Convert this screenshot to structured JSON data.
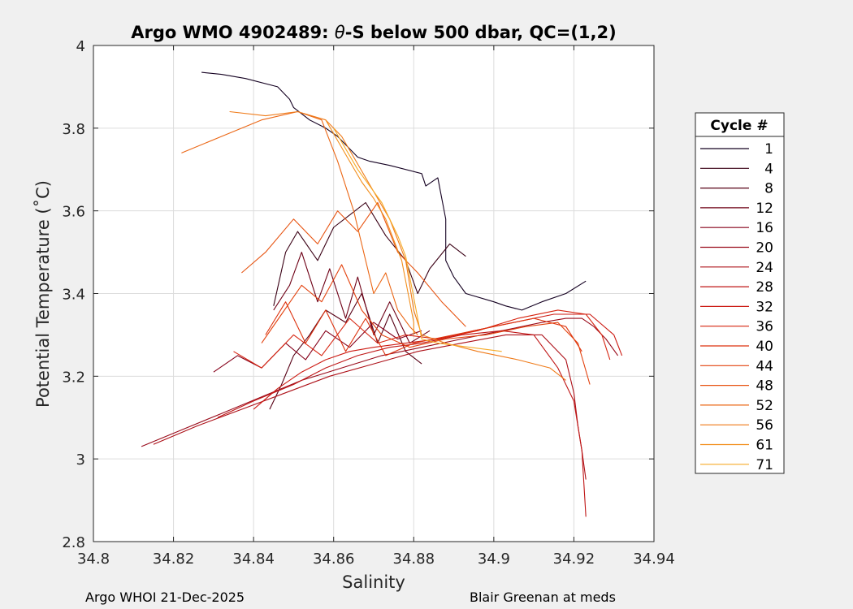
{
  "chart_data": {
    "type": "line",
    "title_prefix": "Argo WMO 4902489: ",
    "title_symbol": "θ",
    "title_suffix": "-S below 500 dbar,  QC=(1,2)",
    "xlabel": "Salinity",
    "ylabel": "Potential Temperature (˚C)",
    "xlim": [
      34.8,
      34.94
    ],
    "ylim": [
      2.8,
      4.0
    ],
    "xticks": [
      34.8,
      34.82,
      34.84,
      34.86,
      34.88,
      34.9,
      34.92,
      34.94
    ],
    "xtick_labels": [
      "34.8",
      "34.82",
      "34.84",
      "34.86",
      "34.88",
      "34.9",
      "34.92",
      "34.94"
    ],
    "yticks": [
      2.8,
      3.0,
      3.2,
      3.4,
      3.6,
      3.8,
      4.0
    ],
    "ytick_labels": [
      "2.8",
      "3",
      "3.2",
      "3.4",
      "3.6",
      "3.8",
      "4"
    ],
    "grid": true,
    "legend": {
      "title": "Cycle #",
      "placement": "outside-right",
      "entries": [
        "1",
        "4",
        "8",
        "12",
        "16",
        "20",
        "24",
        "28",
        "32",
        "36",
        "40",
        "44",
        "48",
        "52",
        "56",
        "61",
        "71"
      ]
    },
    "colormap": [
      "#140021",
      "#3a0015",
      "#570015",
      "#6e0016",
      "#85001a",
      "#990a1a",
      "#ad1018",
      "#bf1616",
      "#cc1a12",
      "#d62410",
      "#dd320e",
      "#e3420e",
      "#e75412",
      "#eb6614",
      "#ef7a18",
      "#f28e1c",
      "#f6ab28"
    ],
    "series": [
      {
        "name": "1",
        "x": [
          34.827,
          34.832,
          34.838,
          34.846,
          34.849,
          34.85,
          34.854,
          34.858,
          34.861,
          34.866,
          34.869,
          34.874,
          34.882,
          34.883,
          34.886,
          34.887,
          34.888,
          34.888,
          34.89,
          34.893,
          34.9,
          34.903,
          34.907,
          34.912,
          34.918,
          34.923
        ],
        "y": [
          3.935,
          3.93,
          3.92,
          3.9,
          3.87,
          3.85,
          3.82,
          3.8,
          3.78,
          3.73,
          3.72,
          3.71,
          3.69,
          3.66,
          3.68,
          3.63,
          3.58,
          3.48,
          3.44,
          3.4,
          3.38,
          3.37,
          3.36,
          3.38,
          3.4,
          3.43
        ]
      },
      {
        "name": "4",
        "x": [
          34.845,
          34.848,
          34.851,
          34.856,
          34.86,
          34.864,
          34.868,
          34.873,
          34.878,
          34.881,
          34.884,
          34.889,
          34.893
        ],
        "y": [
          3.37,
          3.5,
          3.55,
          3.48,
          3.56,
          3.59,
          3.62,
          3.54,
          3.48,
          3.4,
          3.46,
          3.52,
          3.49
        ]
      },
      {
        "name": "8",
        "x": [
          34.844,
          34.847,
          34.85,
          34.854,
          34.858,
          34.863,
          34.867,
          34.871,
          34.874,
          34.878,
          34.882
        ],
        "y": [
          3.12,
          3.18,
          3.25,
          3.3,
          3.36,
          3.33,
          3.4,
          3.28,
          3.35,
          3.26,
          3.23
        ]
      },
      {
        "name": "12",
        "x": [
          34.845,
          34.849,
          34.852,
          34.856,
          34.859,
          34.863,
          34.866,
          34.87,
          34.874,
          34.879,
          34.884
        ],
        "y": [
          3.36,
          3.42,
          3.5,
          3.38,
          3.46,
          3.34,
          3.44,
          3.3,
          3.38,
          3.28,
          3.31
        ]
      },
      {
        "name": "16",
        "x": [
          34.83,
          34.836,
          34.842,
          34.848,
          34.853,
          34.858,
          34.864,
          34.87,
          34.876,
          34.882
        ],
        "y": [
          3.21,
          3.25,
          3.22,
          3.28,
          3.24,
          3.31,
          3.27,
          3.33,
          3.29,
          3.31
        ]
      },
      {
        "name": "20",
        "x": [
          34.812,
          34.822,
          34.832,
          34.842,
          34.852,
          34.862,
          34.872,
          34.882,
          34.892,
          34.902,
          34.912,
          34.918,
          34.922,
          34.925,
          34.928,
          34.931
        ],
        "y": [
          3.03,
          3.07,
          3.11,
          3.15,
          3.19,
          3.22,
          3.25,
          3.27,
          3.29,
          3.31,
          3.33,
          3.34,
          3.34,
          3.32,
          3.29,
          3.25
        ]
      },
      {
        "name": "24",
        "x": [
          34.815,
          34.826,
          34.837,
          34.848,
          34.859,
          34.87,
          34.881,
          34.892,
          34.903,
          34.912,
          34.918,
          34.92,
          34.921,
          34.922,
          34.923
        ],
        "y": [
          3.035,
          3.08,
          3.12,
          3.16,
          3.2,
          3.23,
          3.26,
          3.28,
          3.3,
          3.3,
          3.24,
          3.16,
          3.08,
          3.02,
          2.95
        ]
      },
      {
        "name": "28",
        "x": [
          34.831,
          34.84,
          34.85,
          34.858,
          34.866,
          34.874,
          34.882,
          34.892,
          34.902,
          34.91,
          34.916,
          34.92,
          34.922,
          34.923
        ],
        "y": [
          3.1,
          3.14,
          3.18,
          3.22,
          3.25,
          3.27,
          3.28,
          3.3,
          3.31,
          3.3,
          3.22,
          3.14,
          3.02,
          2.86
        ]
      },
      {
        "name": "32",
        "x": [
          34.84,
          34.846,
          34.852,
          34.858,
          34.864,
          34.87,
          34.878,
          34.886,
          34.895,
          34.905,
          34.915,
          34.924,
          34.93,
          34.932
        ],
        "y": [
          3.12,
          3.17,
          3.21,
          3.24,
          3.26,
          3.27,
          3.28,
          3.29,
          3.31,
          3.33,
          3.35,
          3.35,
          3.3,
          3.25
        ]
      },
      {
        "name": "36",
        "x": [
          34.835,
          34.842,
          34.85,
          34.857,
          34.864,
          34.871,
          34.878,
          34.886,
          34.896,
          34.906,
          34.916,
          34.923,
          34.927,
          34.929
        ],
        "y": [
          3.26,
          3.22,
          3.3,
          3.25,
          3.34,
          3.28,
          3.3,
          3.29,
          3.31,
          3.34,
          3.36,
          3.35,
          3.3,
          3.24
        ]
      },
      {
        "name": "40",
        "x": [
          34.843,
          34.848,
          34.853,
          34.858,
          34.863,
          34.868,
          34.873,
          34.88,
          34.89,
          34.9,
          34.91,
          34.918,
          34.922
        ],
        "y": [
          3.3,
          3.38,
          3.28,
          3.36,
          3.26,
          3.34,
          3.25,
          3.28,
          3.3,
          3.32,
          3.34,
          3.32,
          3.26
        ]
      },
      {
        "name": "44",
        "x": [
          34.842,
          34.847,
          34.852,
          34.857,
          34.862,
          34.867,
          34.872,
          34.879,
          34.888,
          34.898,
          34.908,
          34.916,
          34.921,
          34.924
        ],
        "y": [
          3.28,
          3.35,
          3.42,
          3.38,
          3.47,
          3.36,
          3.3,
          3.27,
          3.29,
          3.3,
          3.32,
          3.33,
          3.28,
          3.18
        ]
      },
      {
        "name": "48",
        "x": [
          34.837,
          34.843,
          34.85,
          34.856,
          34.861,
          34.866,
          34.871,
          34.876,
          34.881,
          34.887,
          34.893
        ],
        "y": [
          3.45,
          3.5,
          3.58,
          3.52,
          3.6,
          3.55,
          3.62,
          3.5,
          3.45,
          3.38,
          3.32
        ]
      },
      {
        "name": "52",
        "x": [
          34.822,
          34.832,
          34.842,
          34.851,
          34.857,
          34.861,
          34.865,
          34.868,
          34.87,
          34.873,
          34.876,
          34.879,
          34.881
        ],
        "y": [
          3.74,
          3.78,
          3.82,
          3.84,
          3.82,
          3.72,
          3.6,
          3.48,
          3.4,
          3.45,
          3.36,
          3.32,
          3.3
        ]
      },
      {
        "name": "56",
        "x": [
          34.834,
          34.843,
          34.851,
          34.858,
          34.862,
          34.865,
          34.868,
          34.871,
          34.874,
          34.876,
          34.878,
          34.879,
          34.88,
          34.882,
          34.888,
          34.896,
          34.906,
          34.914,
          34.918
        ],
        "y": [
          3.84,
          3.83,
          3.84,
          3.82,
          3.78,
          3.73,
          3.68,
          3.63,
          3.58,
          3.53,
          3.48,
          3.42,
          3.36,
          3.3,
          3.28,
          3.26,
          3.24,
          3.22,
          3.19
        ]
      },
      {
        "name": "61",
        "x": [
          34.858,
          34.861,
          34.864,
          34.867,
          34.87,
          34.873,
          34.875,
          34.877,
          34.878,
          34.879,
          34.88,
          34.88
        ],
        "y": [
          3.82,
          3.77,
          3.72,
          3.67,
          3.63,
          3.58,
          3.53,
          3.48,
          3.43,
          3.38,
          3.33,
          3.3
        ]
      },
      {
        "name": "71",
        "x": [
          34.86,
          34.863,
          34.866,
          34.869,
          34.872,
          34.874,
          34.876,
          34.878,
          34.879,
          34.88,
          34.881,
          34.882,
          34.886,
          34.894,
          34.902
        ],
        "y": [
          3.8,
          3.75,
          3.7,
          3.66,
          3.62,
          3.58,
          3.54,
          3.49,
          3.44,
          3.39,
          3.34,
          3.29,
          3.28,
          3.27,
          3.26
        ]
      }
    ]
  },
  "footer": {
    "left": "Argo WHOI 21-Dec-2025",
    "right": "Blair Greenan at meds"
  }
}
